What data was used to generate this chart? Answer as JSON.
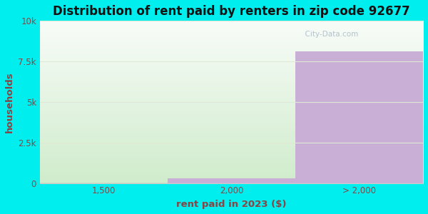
{
  "title": "Distribution of rent paid by renters in zip code 92677",
  "xlabel": "rent paid in 2023 ($)",
  "ylabel": "households",
  "categories": [
    "1,500",
    "2,000",
    "> 2,000"
  ],
  "values": [
    30,
    280,
    8100
  ],
  "bar_colors": [
    "#c8dfc0",
    "#c9aed6",
    "#c9aed6"
  ],
  "ylim": [
    0,
    10000
  ],
  "yticks": [
    0,
    2500,
    5000,
    7500,
    10000
  ],
  "ytick_labels": [
    "0",
    "2.5k",
    "5k",
    "7.5k",
    "10k"
  ],
  "bg_outer": "#00eeee",
  "bg_plot_color_top": "#f8fcf8",
  "bg_plot_color_bottom": "#d0eccc",
  "grid_color": "#dde8d5",
  "title_fontsize": 12,
  "axis_label_fontsize": 9.5,
  "tick_fontsize": 8.5,
  "title_color": "#111111",
  "axis_label_color": "#884444",
  "tick_color": "#884444",
  "watermark_text": "  City-Data.com"
}
